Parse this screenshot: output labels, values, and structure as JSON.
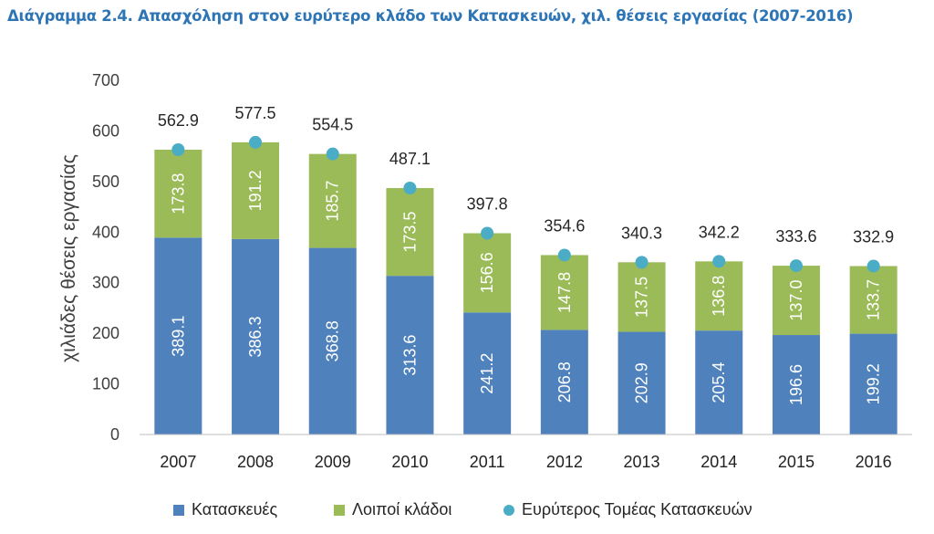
{
  "title": "Διάγραμμα 2.4. Απασχόληση στον ευρύτερο κλάδο των Κατασκευών, χιλ. θέσεις εργασίας (2007-2016)",
  "chart_data": {
    "type": "bar",
    "stacked": true,
    "title": "Διάγραμμα 2.4. Απασχόληση στον ευρύτερο κλάδο των Κατασκευών, χιλ. θέσεις εργασίας (2007-2016)",
    "xlabel": "",
    "ylabel": "χιλιάδες θέσεις εργασίας",
    "categories": [
      "2007",
      "2008",
      "2009",
      "2010",
      "2011",
      "2012",
      "2013",
      "2014",
      "2015",
      "2016"
    ],
    "ylim": [
      0,
      700
    ],
    "yticks": [
      "0",
      "100",
      "200",
      "300",
      "400",
      "500",
      "600",
      "700"
    ],
    "grid": false,
    "legend_position": "bottom",
    "series": [
      {
        "name": "Κατασκευές",
        "type": "bar",
        "color": "#4f81bd",
        "values": [
          389.1,
          386.3,
          368.8,
          313.6,
          241.2,
          206.8,
          202.9,
          205.4,
          196.6,
          199.2
        ],
        "labels": [
          "389.1",
          "386.3",
          "368.8",
          "313.6",
          "241.2",
          "206.8",
          "202.9",
          "205.4",
          "196.6",
          "199.2"
        ]
      },
      {
        "name": "Λοιποί κλάδοι",
        "type": "bar",
        "color": "#9bbb59",
        "values": [
          173.8,
          191.2,
          185.7,
          173.5,
          156.6,
          147.8,
          137.5,
          136.8,
          137.0,
          133.7
        ],
        "labels": [
          "173.8",
          "191.2",
          "185.7",
          "173.5",
          "156.6",
          "147.8",
          "137.5",
          "136.8",
          "137.0",
          "133.7"
        ]
      },
      {
        "name": "Ευρύτερος Τομέας Κατασκευών",
        "type": "scatter",
        "color": "#4bacc6",
        "values": [
          562.9,
          577.5,
          554.5,
          487.1,
          397.8,
          354.6,
          340.3,
          342.2,
          333.6,
          332.9
        ],
        "labels": [
          "562.9",
          "577.5",
          "554.5",
          "487.1",
          "397.8",
          "354.6",
          "340.3",
          "342.2",
          "333.6",
          "332.9"
        ]
      }
    ]
  },
  "legend": {
    "items": [
      {
        "label": "Κατασκευές",
        "color": "#4f81bd",
        "marker": "square"
      },
      {
        "label": "Λοιποί κλάδοι",
        "color": "#9bbb59",
        "marker": "square"
      },
      {
        "label": "Ευρύτερος Τομέας Κατασκευών",
        "color": "#4bacc6",
        "marker": "circle"
      }
    ]
  }
}
